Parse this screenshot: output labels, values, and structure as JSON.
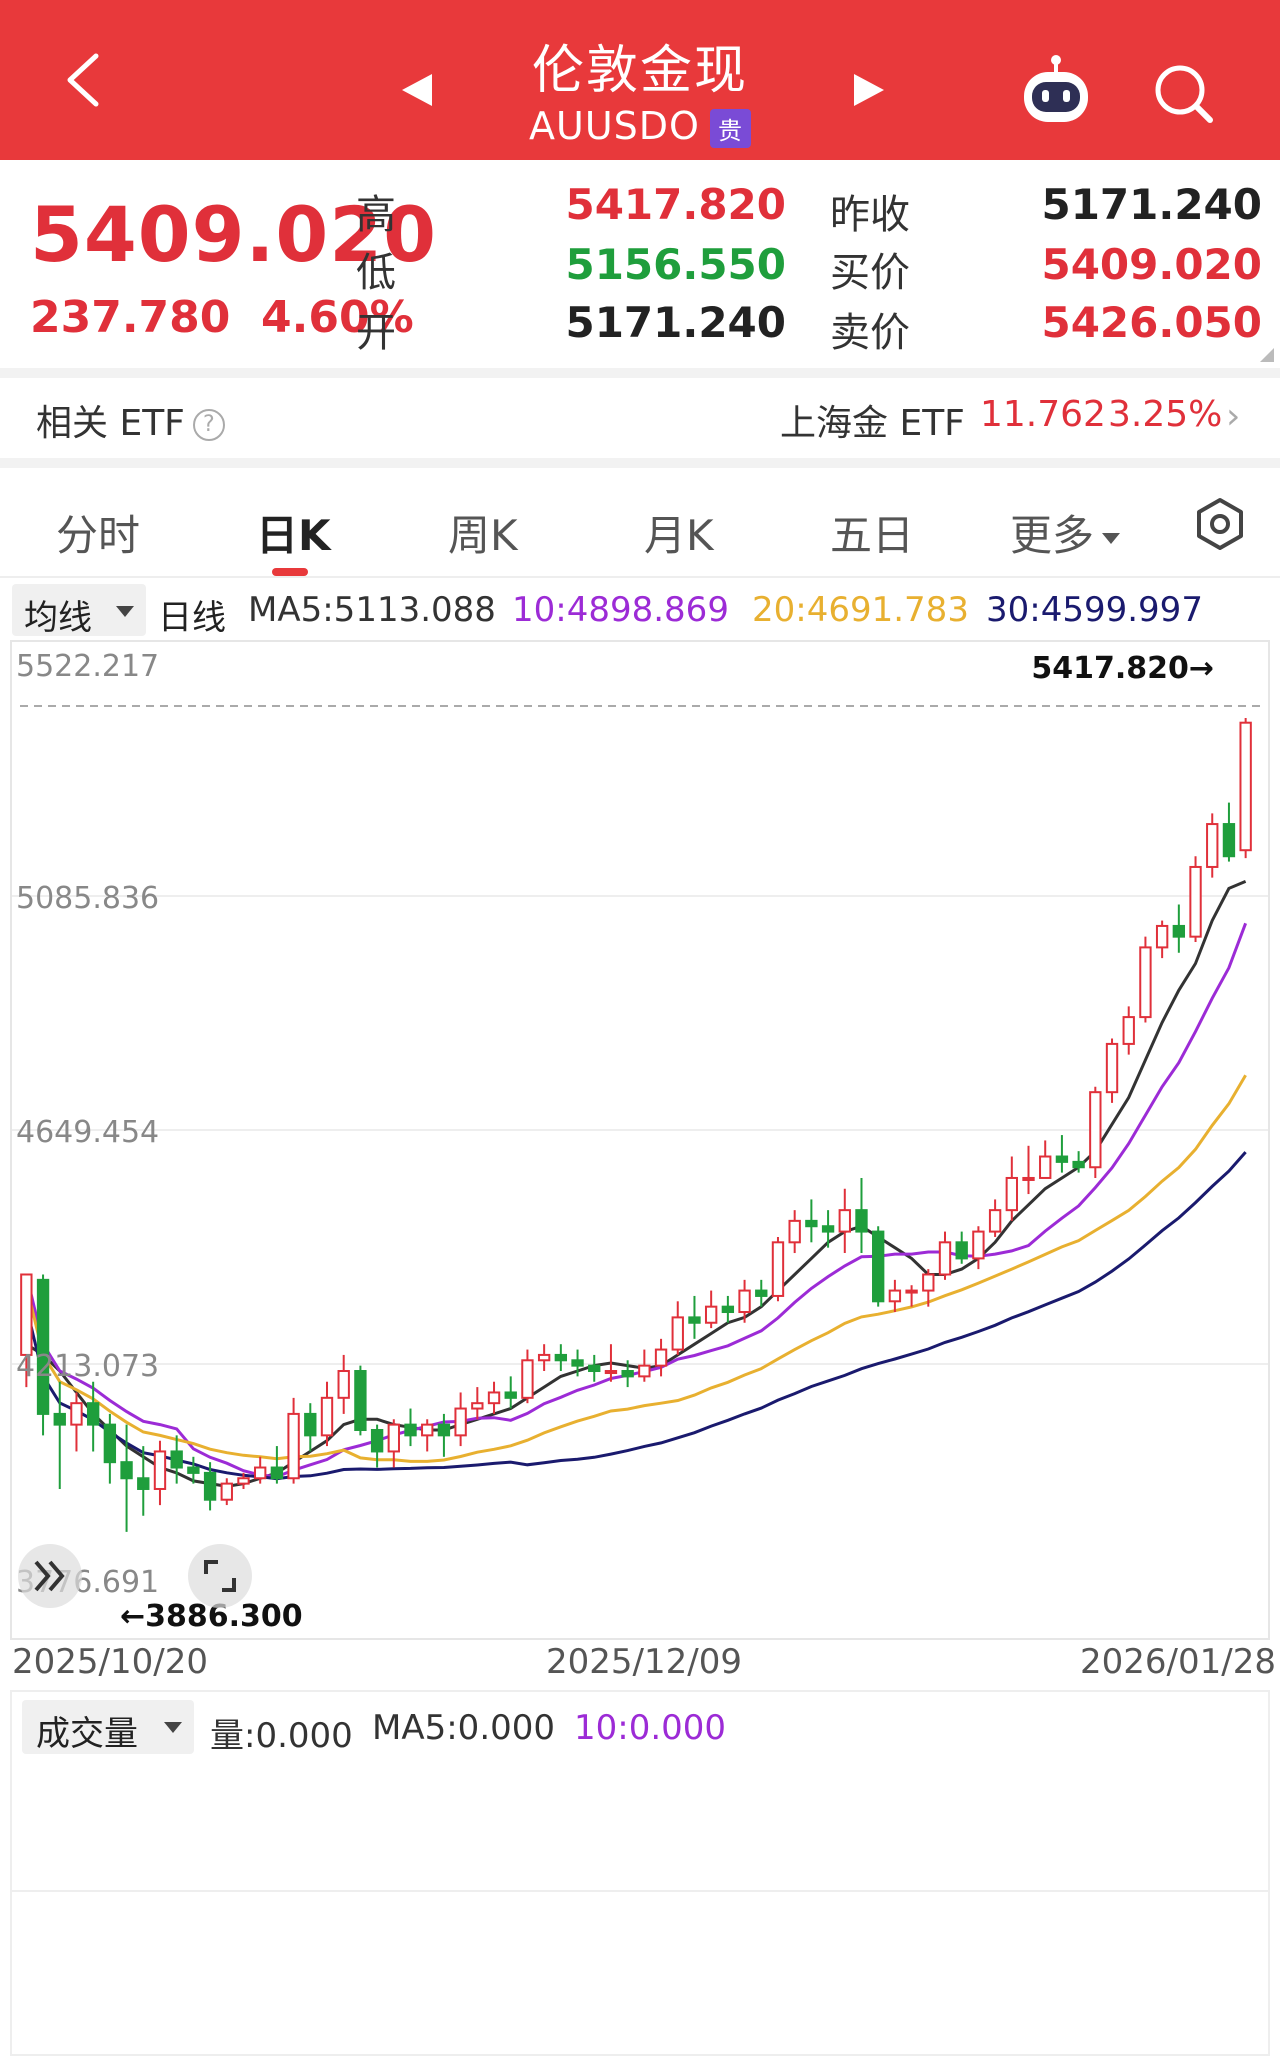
{
  "header": {
    "title": "伦敦金现",
    "symbol": "AUUSDO",
    "badge": "贵"
  },
  "quote": {
    "last": "5409.020",
    "change": "237.780",
    "change_pct": "4.60%",
    "high_label": "高",
    "high": "5417.820",
    "low_label": "低",
    "low": "5156.550",
    "open_label": "开",
    "open": "5171.240",
    "prev_close_label": "昨收",
    "prev_close": "5171.240",
    "bid_label": "买价",
    "bid": "5409.020",
    "ask_label": "卖价",
    "ask": "5426.050"
  },
  "etf": {
    "label": "相关 ETF",
    "help": "?",
    "name": "上海金 ETF",
    "value": "11.762",
    "pct": "3.25%",
    "arrow": "›"
  },
  "tabs": [
    {
      "label": "分时"
    },
    {
      "label": "日K"
    },
    {
      "label": "周K"
    },
    {
      "label": "月K"
    },
    {
      "label": "五日"
    },
    {
      "label": "更多"
    }
  ],
  "ma": {
    "selector": "均线",
    "period": "日线",
    "ma5": "MA5:5113.088",
    "ma10": "10:4898.869",
    "ma20": "20:4691.783",
    "ma30": "30:4599.997"
  },
  "colors": {
    "header": "#e8393b",
    "up": "#e0303a",
    "down": "#1f9e3c",
    "ma5": "#333333",
    "ma10": "#9c2bd6",
    "ma20": "#e8b030",
    "ma30": "#1a1a6e"
  },
  "chart_data": {
    "type": "candlestick",
    "y_ticks": [
      "5522.217",
      "5085.836",
      "4649.454",
      "4213.073",
      "3776.691"
    ],
    "y_tick_values": [
      5522.217,
      5085.836,
      4649.454,
      4213.073,
      3776.691
    ],
    "ylim": [
      3776.691,
      5522.217
    ],
    "x_ticks": [
      "2025/10/20",
      "2025/12/09",
      "2026/01/28"
    ],
    "max_marker": "5417.820→",
    "min_marker": "←3886.300",
    "candles": [
      [
        4230,
        4380,
        4370,
        4170
      ],
      [
        4370,
        4120,
        4380,
        4080
      ],
      [
        4120,
        4100,
        4180,
        3980
      ],
      [
        4100,
        4140,
        4160,
        4050
      ],
      [
        4140,
        4100,
        4180,
        4050
      ],
      [
        4100,
        4030,
        4120,
        3990
      ],
      [
        4030,
        4000,
        4100,
        3900
      ],
      [
        4000,
        3980,
        4060,
        3930
      ],
      [
        3980,
        4050,
        4070,
        3950
      ],
      [
        4050,
        4020,
        4080,
        3990
      ],
      [
        4020,
        4010,
        4040,
        3990
      ],
      [
        4010,
        3960,
        4030,
        3940
      ],
      [
        3960,
        3990,
        4000,
        3950
      ],
      [
        3990,
        4000,
        4010,
        3980
      ],
      [
        4000,
        4020,
        4040,
        3990
      ],
      [
        4020,
        4000,
        4060,
        3990
      ],
      [
        4000,
        4120,
        4150,
        3990
      ],
      [
        4120,
        4080,
        4140,
        4050
      ],
      [
        4080,
        4150,
        4180,
        4060
      ],
      [
        4150,
        4200,
        4230,
        4120
      ],
      [
        4200,
        4090,
        4210,
        4080
      ],
      [
        4090,
        4050,
        4100,
        4020
      ],
      [
        4050,
        4100,
        4110,
        4020
      ],
      [
        4100,
        4080,
        4130,
        4060
      ],
      [
        4080,
        4100,
        4110,
        4050
      ],
      [
        4100,
        4080,
        4120,
        4040
      ],
      [
        4080,
        4130,
        4160,
        4060
      ],
      [
        4130,
        4140,
        4170,
        4110
      ],
      [
        4140,
        4160,
        4180,
        4120
      ],
      [
        4160,
        4150,
        4190,
        4130
      ],
      [
        4150,
        4220,
        4240,
        4140
      ],
      [
        4220,
        4230,
        4250,
        4200
      ],
      [
        4230,
        4220,
        4250,
        4200
      ],
      [
        4220,
        4210,
        4240,
        4190
      ],
      [
        4210,
        4200,
        4230,
        4180
      ],
      [
        4200,
        4200,
        4250,
        4180
      ],
      [
        4200,
        4190,
        4220,
        4170
      ],
      [
        4190,
        4210,
        4240,
        4180
      ],
      [
        4210,
        4240,
        4260,
        4190
      ],
      [
        4240,
        4300,
        4330,
        4230
      ],
      [
        4300,
        4290,
        4340,
        4260
      ],
      [
        4290,
        4320,
        4350,
        4280
      ],
      [
        4320,
        4310,
        4340,
        4290
      ],
      [
        4310,
        4350,
        4370,
        4290
      ],
      [
        4350,
        4340,
        4370,
        4320
      ],
      [
        4340,
        4440,
        4450,
        4330
      ],
      [
        4440,
        4480,
        4500,
        4420
      ],
      [
        4480,
        4470,
        4520,
        4440
      ],
      [
        4470,
        4460,
        4500,
        4430
      ],
      [
        4460,
        4500,
        4540,
        4420
      ],
      [
        4500,
        4460,
        4560,
        4420
      ],
      [
        4460,
        4330,
        4470,
        4320
      ],
      [
        4330,
        4350,
        4370,
        4310
      ],
      [
        4350,
        4350,
        4360,
        4320
      ],
      [
        4350,
        4380,
        4390,
        4320
      ],
      [
        4380,
        4440,
        4460,
        4370
      ],
      [
        4440,
        4410,
        4460,
        4400
      ],
      [
        4410,
        4460,
        4470,
        4390
      ],
      [
        4460,
        4500,
        4520,
        4450
      ],
      [
        4500,
        4560,
        4600,
        4480
      ],
      [
        4560,
        4560,
        4620,
        4530
      ],
      [
        4560,
        4600,
        4630,
        4560
      ],
      [
        4600,
        4590,
        4640,
        4570
      ],
      [
        4590,
        4580,
        4610,
        4570
      ],
      [
        4580,
        4720,
        4730,
        4560
      ],
      [
        4720,
        4810,
        4820,
        4700
      ],
      [
        4810,
        4860,
        4880,
        4790
      ],
      [
        4860,
        4990,
        5010,
        4850
      ],
      [
        4990,
        5030,
        5040,
        4970
      ],
      [
        5030,
        5010,
        5070,
        4980
      ],
      [
        5010,
        5140,
        5160,
        5000
      ],
      [
        5140,
        5220,
        5240,
        5120
      ],
      [
        5220,
        5160,
        5260,
        5150
      ],
      [
        5171.24,
        5409.02,
        5417.82,
        5156.55
      ]
    ],
    "ma5": [
      4250,
      4230,
      4200,
      4160,
      4120,
      4090,
      4060,
      4040,
      4020,
      4010,
      3995,
      3990,
      3985,
      3990,
      4000,
      4010,
      4030,
      4050,
      4070,
      4100,
      4110,
      4110,
      4100,
      4095,
      4090,
      4090,
      4100,
      4110,
      4120,
      4130,
      4150,
      4170,
      4190,
      4200,
      4210,
      4215,
      4210,
      4205,
      4210,
      4230,
      4250,
      4270,
      4290,
      4300,
      4320,
      4350,
      4380,
      4410,
      4440,
      4460,
      4470,
      4450,
      4430,
      4410,
      4380,
      4380,
      4390,
      4410,
      4440,
      4480,
      4510,
      4540,
      4560,
      4580,
      4610,
      4660,
      4710,
      4780,
      4850,
      4910,
      4960,
      5040,
      5100,
      5113
    ]
  }
}
